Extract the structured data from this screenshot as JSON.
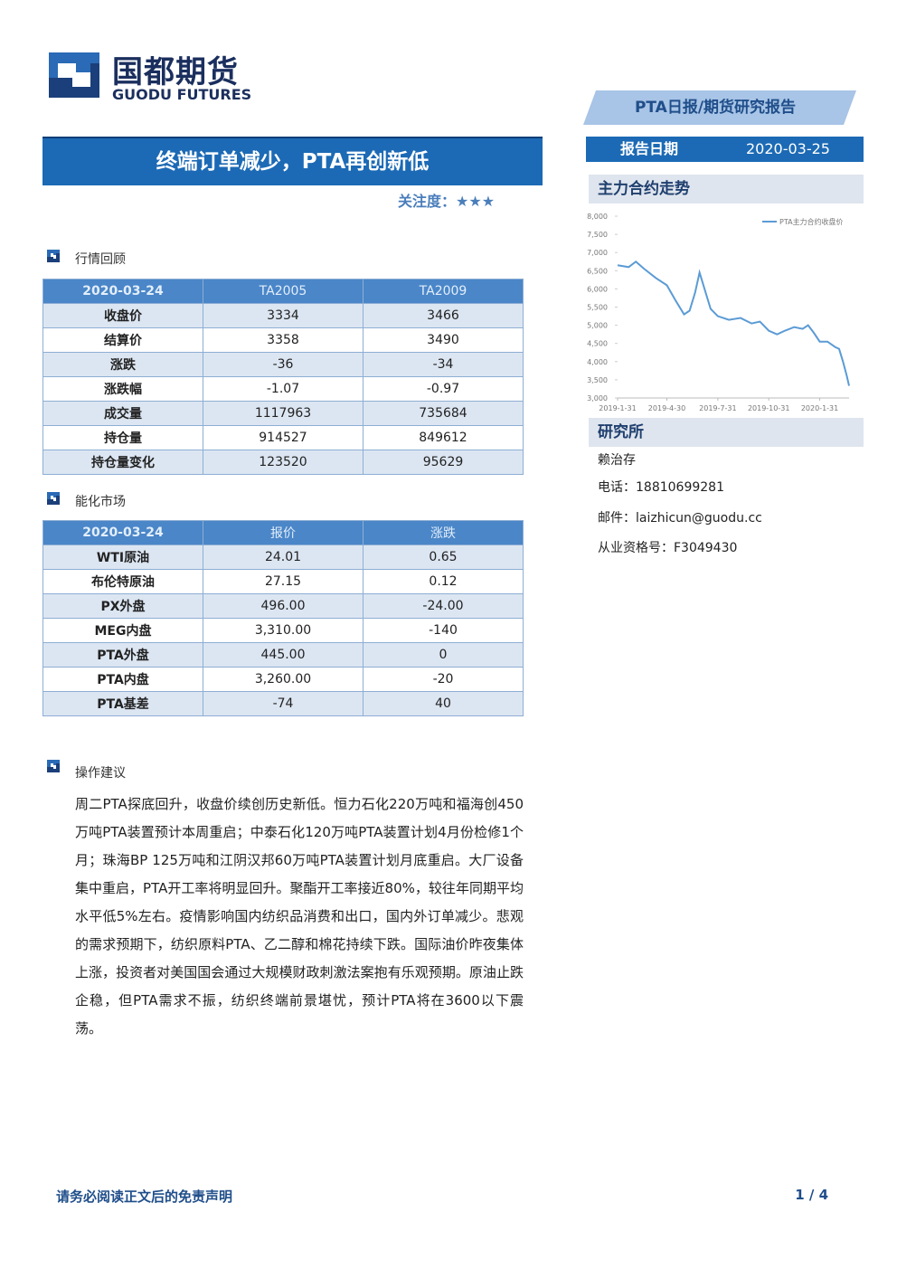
{
  "header": {
    "logo_cn": "国都期货",
    "logo_en": "GUODU FUTURES",
    "report_type": "PTA日报/期货研究报告",
    "date_label": "报告日期",
    "date": "2020-03-25"
  },
  "title": "终端订单减少，PTA再创新低",
  "attention": "关注度：★★★",
  "market_review": {
    "heading": "行情回顾",
    "table": {
      "header": [
        "2020-03-24",
        "TA2005",
        "TA2009"
      ],
      "rows": [
        [
          "收盘价",
          "3334",
          "3466"
        ],
        [
          "结算价",
          "3358",
          "3490"
        ],
        [
          "涨跌",
          "-36",
          "-34"
        ],
        [
          "涨跌幅",
          "-1.07",
          "-0.97"
        ],
        [
          "成交量",
          "1117963",
          "735684"
        ],
        [
          "持仓量",
          "914527",
          "849612"
        ],
        [
          "持仓量变化",
          "123520",
          "95629"
        ]
      ]
    }
  },
  "energy_market": {
    "heading": "能化市场",
    "table": {
      "header": [
        "2020-03-24",
        "报价",
        "涨跌"
      ],
      "rows": [
        [
          "WTI原油",
          "24.01",
          "0.65"
        ],
        [
          "布伦特原油",
          "27.15",
          "0.12"
        ],
        [
          "PX外盘",
          "496.00",
          "-24.00"
        ],
        [
          "MEG内盘",
          "3,310.00",
          "-140"
        ],
        [
          "PTA外盘",
          "445.00",
          "0"
        ],
        [
          "PTA内盘",
          "3,260.00",
          "-20"
        ],
        [
          "PTA基差",
          "-74",
          "40"
        ]
      ]
    }
  },
  "advice": {
    "heading": "操作建议",
    "text": "周二PTA探底回升，收盘价续创历史新低。恒力石化220万吨和福海创450万吨PTA装置预计本周重启；中泰石化120万吨PTA装置计划4月份检修1个月；珠海BP 125万吨和江阴汉邦60万吨PTA装置计划月底重启。大厂设备集中重启，PTA开工率将明显回升。聚酯开工率接近80%，较往年同期平均水平低5%左右。疫情影响国内纺织品消费和出口，国内外订单减少。悲观的需求预期下，纺织原料PTA、乙二醇和棉花持续下跌。国际油价昨夜集体上涨，投资者对美国国会通过大规模财政刺激法案抱有乐观预期。原油止跌企稳，但PTA需求不振，纺织终端前景堪忧，预计PTA将在3600以下震荡。"
  },
  "sidebar": {
    "chart_heading": "主力合约走势",
    "research_heading": "研究所",
    "analyst": "赖治存",
    "phone": "电话：18810699281",
    "email": "邮件：laizhicun@guodu.cc",
    "license": "从业资格号：F3049430"
  },
  "chart_data": {
    "type": "line",
    "x": [
      "2019-1-31",
      "2019-2-20",
      "2019-3-5",
      "2019-3-20",
      "2019-4-10",
      "2019-4-30",
      "2019-5-15",
      "2019-5-31",
      "2019-6-10",
      "2019-6-20",
      "2019-6-28",
      "2019-7-8",
      "2019-7-18",
      "2019-7-31",
      "2019-8-20",
      "2019-9-10",
      "2019-9-30",
      "2019-10-15",
      "2019-10-31",
      "2019-11-15",
      "2019-11-29",
      "2019-12-16",
      "2019-12-31",
      "2020-1-10",
      "2020-1-20",
      "2020-1-31",
      "2020-2-14",
      "2020-2-28",
      "2020-3-6",
      "2020-3-13",
      "2020-3-20",
      "2020-3-24"
    ],
    "series": [
      {
        "name": "PTA主力合约收盘价",
        "color": "#5b9bd5",
        "values": [
          6650,
          6600,
          6750,
          6550,
          6300,
          6100,
          5700,
          5300,
          5400,
          5900,
          6450,
          5950,
          5450,
          5250,
          5150,
          5200,
          5050,
          5100,
          4850,
          4750,
          4850,
          4950,
          4900,
          5000,
          4800,
          4550,
          4550,
          4400,
          4350,
          4000,
          3600,
          3334
        ]
      }
    ],
    "xlim": [
      "2019-1-31",
      "2020-3-24"
    ],
    "xticks": [
      "2019-1-31",
      "2019-4-30",
      "2019-7-31",
      "2019-10-31",
      "2020-1-31"
    ],
    "ylim": [
      3000,
      8000
    ],
    "yticks": [
      {
        "value": 3000,
        "label": "3,000"
      },
      {
        "value": 3500,
        "label": "3,500"
      },
      {
        "value": 4000,
        "label": "4,000"
      },
      {
        "value": 4500,
        "label": "4,500"
      },
      {
        "value": 5000,
        "label": "5,000"
      },
      {
        "value": 5500,
        "label": "5,500"
      },
      {
        "value": 6000,
        "label": "6,000"
      },
      {
        "value": 6500,
        "label": "6,500"
      },
      {
        "value": 7000,
        "label": "7,000"
      },
      {
        "value": 7500,
        "label": "7,500"
      },
      {
        "value": 8000,
        "label": "8,000"
      }
    ],
    "legend": "upper right"
  },
  "footer": {
    "disclaimer": "请务必阅读正文后的免责声明",
    "page": "1 / 4"
  }
}
